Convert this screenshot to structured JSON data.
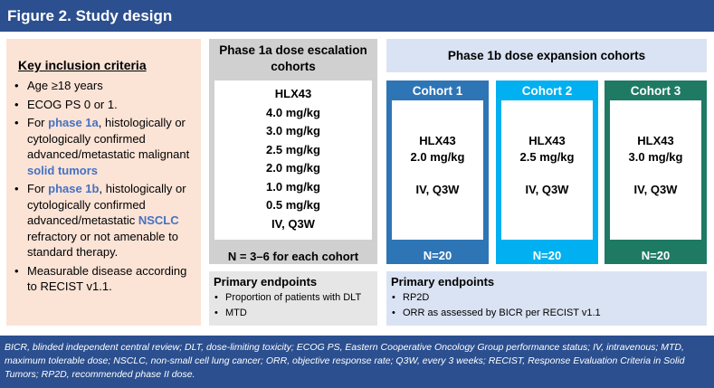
{
  "header": {
    "title": "Figure 2. Study design"
  },
  "inclusion": {
    "title": "Key inclusion criteria",
    "items": [
      [
        "Age ≥18 years"
      ],
      [
        "ECOG PS 0 or 1."
      ],
      [
        "For ",
        "phase 1a",
        ", histologically or cytologically confirmed advanced/metastatic malignant ",
        "solid tumors"
      ],
      [
        "For ",
        "phase 1b",
        ", histologically or cytologically confirmed advanced/metastatic ",
        "NSCLC",
        " refractory or not amenable to standard therapy."
      ],
      [
        "Measurable disease according to RECIST v1.1."
      ]
    ]
  },
  "phase1a": {
    "title": "Phase 1a dose escalation cohorts",
    "lines": [
      "HLX43",
      "4.0 mg/kg",
      "3.0 mg/kg",
      "2.5 mg/kg",
      "2.0 mg/kg",
      "1.0 mg/kg",
      "0.5 mg/kg",
      "IV, Q3W"
    ],
    "note": "N = 3–6 for each cohort",
    "endpoints": {
      "title": "Primary endpoints",
      "items": [
        "Proportion of patients with DLT",
        "MTD"
      ]
    }
  },
  "phase1b": {
    "title": "Phase 1b dose expansion cohorts",
    "cohorts": [
      {
        "name": "Cohort 1",
        "lines": [
          "HLX43",
          "2.0 mg/kg",
          "IV, Q3W"
        ],
        "n": "N=20",
        "color": "#2e75b6"
      },
      {
        "name": "Cohort 2",
        "lines": [
          "HLX43",
          "2.5 mg/kg",
          "IV, Q3W"
        ],
        "n": "N=20",
        "color": "#00b0f0"
      },
      {
        "name": "Cohort 3",
        "lines": [
          "HLX43",
          "3.0 mg/kg",
          "IV, Q3W"
        ],
        "n": "N=20",
        "color": "#1f7a64"
      }
    ],
    "endpoints": {
      "title": "Primary endpoints",
      "items": [
        "RP2D",
        "ORR as assessed by BICR per RECIST v1.1"
      ]
    }
  },
  "footnote": "BICR, blinded independent central review; DLT, dose-limiting toxicity; ECOG PS, Eastern Cooperative Oncology Group performance status; IV, intravenous; MTD, maximum tolerable dose; NSCLC, non-small cell lung cancer; ORR, objective response rate; Q3W, every 3 weeks; RECIST, Response Evaluation Criteria in Solid Tumors; RP2D, recommended phase II dose."
}
